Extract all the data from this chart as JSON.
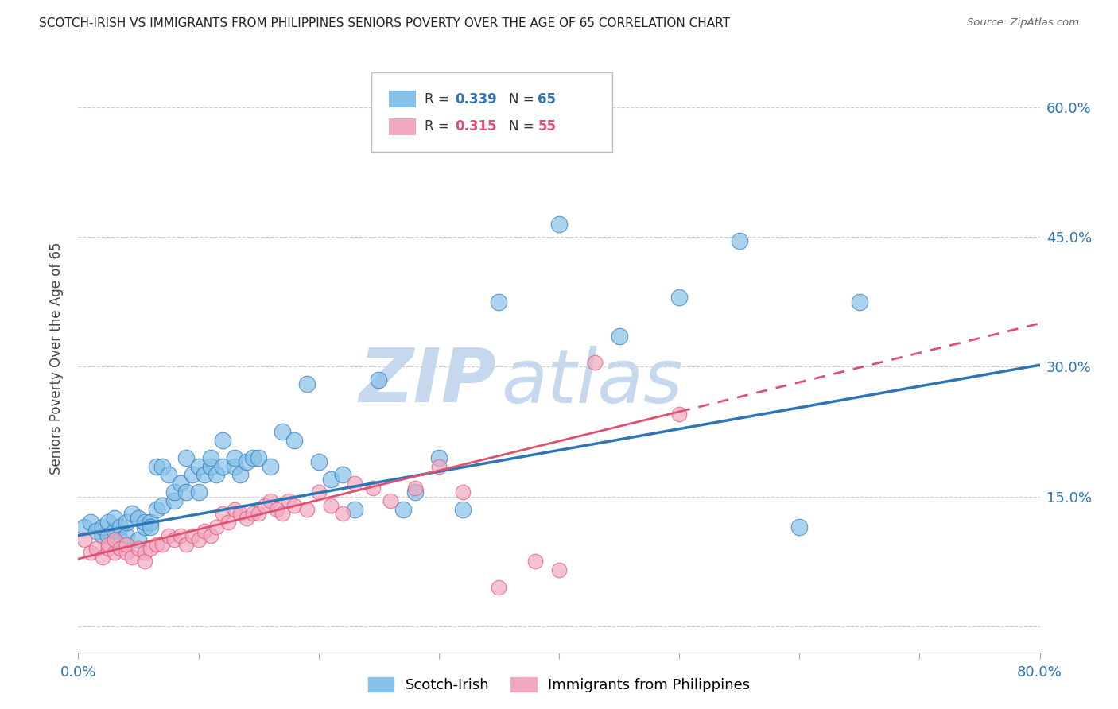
{
  "title": "SCOTCH-IRISH VS IMMIGRANTS FROM PHILIPPINES SENIORS POVERTY OVER THE AGE OF 65 CORRELATION CHART",
  "source": "Source: ZipAtlas.com",
  "ylabel": "Seniors Poverty Over the Age of 65",
  "xlim": [
    0.0,
    0.8
  ],
  "ylim": [
    -0.03,
    0.65
  ],
  "ytick_vals": [
    0.0,
    0.15,
    0.3,
    0.45,
    0.6
  ],
  "xtick_vals": [
    0.0,
    0.1,
    0.2,
    0.3,
    0.4,
    0.5,
    0.6,
    0.7,
    0.8
  ],
  "legend_r1": "0.339",
  "legend_n1": "65",
  "legend_r2": "0.315",
  "legend_n2": "55",
  "color_blue": "#85C1E9",
  "color_pink": "#F1A8C0",
  "line_blue": "#2E75B6",
  "line_pink": "#E05070",
  "watermark_zip": "ZIP",
  "watermark_atlas": "atlas",
  "watermark_color": "#C5D8ED",
  "scotch_irish_x": [
    0.005,
    0.01,
    0.015,
    0.02,
    0.02,
    0.025,
    0.025,
    0.03,
    0.03,
    0.035,
    0.035,
    0.04,
    0.04,
    0.045,
    0.05,
    0.05,
    0.055,
    0.055,
    0.06,
    0.06,
    0.065,
    0.065,
    0.07,
    0.07,
    0.075,
    0.08,
    0.08,
    0.085,
    0.09,
    0.09,
    0.095,
    0.1,
    0.1,
    0.105,
    0.11,
    0.11,
    0.115,
    0.12,
    0.12,
    0.13,
    0.13,
    0.135,
    0.14,
    0.145,
    0.15,
    0.16,
    0.17,
    0.18,
    0.19,
    0.2,
    0.21,
    0.22,
    0.23,
    0.25,
    0.27,
    0.28,
    0.3,
    0.32,
    0.35,
    0.4,
    0.45,
    0.5,
    0.55,
    0.6,
    0.65
  ],
  "scotch_irish_y": [
    0.115,
    0.12,
    0.11,
    0.105,
    0.115,
    0.12,
    0.105,
    0.11,
    0.125,
    0.115,
    0.1,
    0.105,
    0.12,
    0.13,
    0.125,
    0.1,
    0.115,
    0.12,
    0.12,
    0.115,
    0.135,
    0.185,
    0.14,
    0.185,
    0.175,
    0.145,
    0.155,
    0.165,
    0.155,
    0.195,
    0.175,
    0.185,
    0.155,
    0.175,
    0.185,
    0.195,
    0.175,
    0.185,
    0.215,
    0.185,
    0.195,
    0.175,
    0.19,
    0.195,
    0.195,
    0.185,
    0.225,
    0.215,
    0.28,
    0.19,
    0.17,
    0.175,
    0.135,
    0.285,
    0.135,
    0.155,
    0.195,
    0.135,
    0.375,
    0.465,
    0.335,
    0.38,
    0.445,
    0.115,
    0.375
  ],
  "philippines_x": [
    0.005,
    0.01,
    0.015,
    0.02,
    0.025,
    0.025,
    0.03,
    0.03,
    0.035,
    0.04,
    0.04,
    0.045,
    0.05,
    0.055,
    0.055,
    0.06,
    0.065,
    0.07,
    0.075,
    0.08,
    0.085,
    0.09,
    0.095,
    0.1,
    0.105,
    0.11,
    0.115,
    0.12,
    0.125,
    0.13,
    0.135,
    0.14,
    0.145,
    0.15,
    0.155,
    0.16,
    0.165,
    0.17,
    0.175,
    0.18,
    0.19,
    0.2,
    0.21,
    0.22,
    0.23,
    0.245,
    0.26,
    0.28,
    0.3,
    0.32,
    0.35,
    0.38,
    0.4,
    0.43,
    0.5
  ],
  "philippines_y": [
    0.1,
    0.085,
    0.09,
    0.08,
    0.09,
    0.095,
    0.085,
    0.1,
    0.09,
    0.085,
    0.095,
    0.08,
    0.09,
    0.085,
    0.075,
    0.09,
    0.095,
    0.095,
    0.105,
    0.1,
    0.105,
    0.095,
    0.105,
    0.1,
    0.11,
    0.105,
    0.115,
    0.13,
    0.12,
    0.135,
    0.13,
    0.125,
    0.13,
    0.13,
    0.14,
    0.145,
    0.135,
    0.13,
    0.145,
    0.14,
    0.135,
    0.155,
    0.14,
    0.13,
    0.165,
    0.16,
    0.145,
    0.16,
    0.185,
    0.155,
    0.045,
    0.075,
    0.065,
    0.305,
    0.245
  ],
  "line_blue_x0": 0.0,
  "line_blue_y0": 0.105,
  "line_blue_x1": 0.8,
  "line_blue_y1": 0.302,
  "line_pink_x0": 0.0,
  "line_pink_y0": 0.078,
  "line_pink_x1": 0.5,
  "line_pink_y1": 0.248,
  "line_pink_dash_x0": 0.5,
  "line_pink_dash_x1": 0.8
}
